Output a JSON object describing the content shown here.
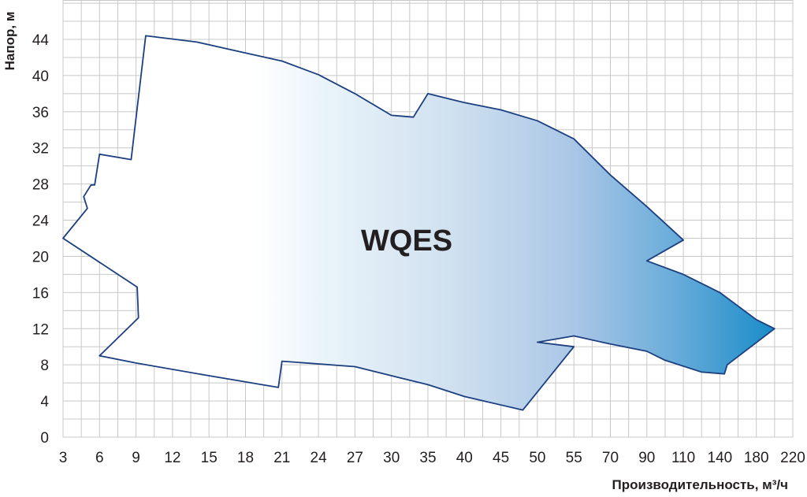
{
  "chart_data": {
    "type": "area",
    "title": "",
    "xlabel": "Производительность, м³/ч",
    "ylabel": "Напор, м",
    "x_ticks": [
      "3",
      "6",
      "9",
      "12",
      "15",
      "18",
      "21",
      "24",
      "27",
      "30",
      "35",
      "40",
      "45",
      "50",
      "55",
      "70",
      "90",
      "110",
      "140",
      "180",
      "220"
    ],
    "y_ticks": [
      "0",
      "4",
      "8",
      "12",
      "16",
      "20",
      "24",
      "28",
      "32",
      "36",
      "40",
      "44"
    ],
    "ylim": [
      0,
      48
    ],
    "grid": true,
    "series": [
      {
        "name": "WQES",
        "polygon": [
          [
            "9.8",
            44.4
          ],
          [
            "14",
            43.7
          ],
          [
            "18",
            42.5
          ],
          [
            "21",
            41.6
          ],
          [
            "24",
            40.1
          ],
          [
            "27",
            38.0
          ],
          [
            "30",
            35.6
          ],
          [
            "33",
            35.4
          ],
          [
            "35",
            38.0
          ],
          [
            "40",
            37.0
          ],
          [
            "45",
            36.2
          ],
          [
            "50",
            35.0
          ],
          [
            "55",
            33.0
          ],
          [
            "70",
            29.0
          ],
          [
            "90",
            25.5
          ],
          [
            "110",
            21.8
          ],
          [
            "90",
            19.5
          ],
          [
            "110",
            18.0
          ],
          [
            "140",
            16.0
          ],
          [
            "180",
            13.0
          ],
          [
            "200",
            12.0
          ],
          [
            "148",
            8.0
          ],
          [
            "145",
            7.0
          ],
          [
            "125",
            7.2
          ],
          [
            "100",
            8.5
          ],
          [
            "90",
            9.5
          ],
          [
            "70",
            10.3
          ],
          [
            "55",
            11.2
          ],
          [
            "50",
            10.5
          ],
          [
            "55",
            10.0
          ],
          [
            "48",
            3.0
          ],
          [
            "40",
            4.5
          ],
          [
            "35",
            5.8
          ],
          [
            "30",
            6.8
          ],
          [
            "27",
            7.8
          ],
          [
            "21",
            8.4
          ],
          [
            "20.7",
            5.5
          ],
          [
            "15",
            6.8
          ],
          [
            "9",
            8.2
          ],
          [
            "6",
            9.0
          ],
          [
            "9.2",
            13.2
          ],
          [
            "9.1",
            16.6
          ],
          [
            "3",
            22.0
          ],
          [
            "5",
            25.3
          ],
          [
            "4.7",
            26.6
          ],
          [
            "5.3",
            27.9
          ],
          [
            "5.6",
            27.9
          ],
          [
            "6",
            31.3
          ],
          [
            "8.6",
            30.7
          ],
          [
            "9.8",
            44.4
          ]
        ]
      }
    ],
    "colors": {
      "fill_start": "#ffffff",
      "fill_end": "#1a8cc8",
      "outline": "#1c3f7f",
      "grid": "#c8c8c8"
    }
  }
}
